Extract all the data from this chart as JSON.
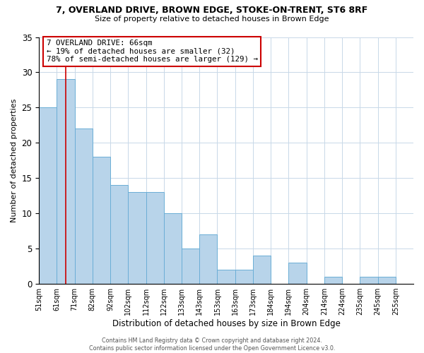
{
  "title": "7, OVERLAND DRIVE, BROWN EDGE, STOKE-ON-TRENT, ST6 8RF",
  "subtitle": "Size of property relative to detached houses in Brown Edge",
  "xlabel": "Distribution of detached houses by size in Brown Edge",
  "ylabel": "Number of detached properties",
  "bin_labels": [
    "51sqm",
    "61sqm",
    "71sqm",
    "82sqm",
    "92sqm",
    "102sqm",
    "112sqm",
    "122sqm",
    "133sqm",
    "143sqm",
    "153sqm",
    "163sqm",
    "173sqm",
    "184sqm",
    "194sqm",
    "204sqm",
    "214sqm",
    "224sqm",
    "235sqm",
    "245sqm",
    "255sqm"
  ],
  "counts": [
    25,
    29,
    22,
    18,
    14,
    13,
    13,
    10,
    5,
    7,
    2,
    2,
    4,
    0,
    3,
    0,
    1,
    0,
    1,
    1,
    0
  ],
  "n_bins": 21,
  "bar_color": "#b8d4ea",
  "bar_edge_color": "#6baed6",
  "property_line_bin": 1.5,
  "property_line_color": "#cc0000",
  "annotation_text": "7 OVERLAND DRIVE: 66sqm\n← 19% of detached houses are smaller (32)\n78% of semi-detached houses are larger (129) →",
  "annotation_box_edge_color": "#cc0000",
  "ylim": [
    0,
    35
  ],
  "yticks": [
    0,
    5,
    10,
    15,
    20,
    25,
    30,
    35
  ],
  "footer_line1": "Contains HM Land Registry data © Crown copyright and database right 2024.",
  "footer_line2": "Contains public sector information licensed under the Open Government Licence v3.0.",
  "background_color": "#ffffff",
  "grid_color": "#c8d8e8"
}
